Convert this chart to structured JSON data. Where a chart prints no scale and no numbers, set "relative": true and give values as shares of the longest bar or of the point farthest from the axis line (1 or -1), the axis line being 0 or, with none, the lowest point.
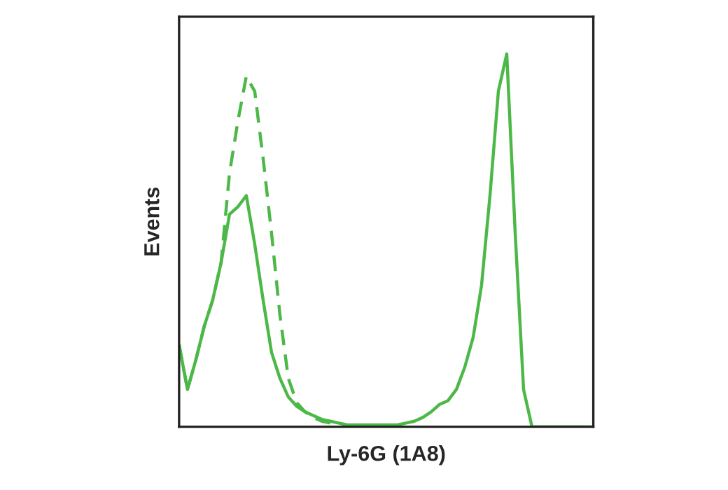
{
  "chart_data": {
    "type": "line",
    "relative": true,
    "xlabel": "Ly-6G (1A8)",
    "ylabel": "Events",
    "categories": [
      null,
      null,
      null,
      null,
      null,
      null,
      null,
      null,
      null,
      null,
      null,
      null,
      null,
      null,
      null,
      null,
      null,
      null,
      null,
      null,
      null,
      null,
      null,
      null,
      null,
      null,
      null,
      null,
      null,
      null,
      null,
      null,
      null,
      null,
      null,
      null,
      null,
      null,
      null,
      null,
      null,
      null,
      null,
      null,
      null,
      null,
      null,
      null,
      null,
      null
    ],
    "series": [
      {
        "color": "#4cb847",
        "line_style": "solid",
        "values": [
          0.22,
          0.1,
          0.18,
          0.27,
          0.34,
          0.44,
          0.57,
          0.59,
          0.62,
          0.49,
          0.34,
          0.2,
          0.13,
          0.08,
          0.055,
          0.04,
          0.03,
          0.02,
          0.015,
          0.01,
          0.005,
          0.005,
          0.005,
          0.005,
          0.005,
          0.005,
          0.005,
          0.01,
          0.015,
          0.025,
          0.04,
          0.06,
          0.07,
          0.1,
          0.16,
          0.24,
          0.38,
          0.62,
          0.9,
          1.0,
          0.52,
          0.1,
          0,
          0,
          0,
          0,
          0,
          0,
          0,
          0
        ]
      },
      {
        "color": "#4cb847",
        "line_style": "dashed",
        "values": [
          0.22,
          0.1,
          0.18,
          0.27,
          0.34,
          0.44,
          0.68,
          0.82,
          0.94,
          0.9,
          0.72,
          0.52,
          0.3,
          0.13,
          0.065,
          0.04,
          0.025,
          0.015,
          0.01,
          null,
          null,
          null,
          null,
          null,
          null,
          null,
          null,
          null,
          null,
          null,
          null,
          null,
          null,
          null,
          null,
          null,
          null,
          null,
          null,
          null,
          null,
          null,
          null,
          null,
          null,
          null,
          null,
          null,
          null,
          null
        ]
      }
    ],
    "grid": false
  }
}
